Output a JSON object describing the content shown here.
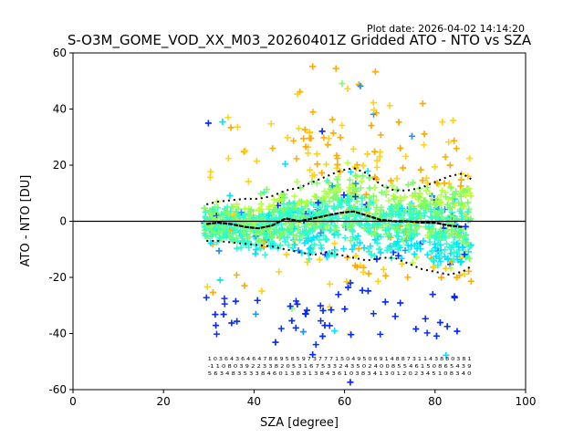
{
  "plot_date": "Plot date: 2026-04-02 14:14:20",
  "chart_data": {
    "type": "scatter",
    "title": "S-O3M_GOME_VOD_XX_M03_20260401Z Gridded ATO - NTO vs SZA",
    "xlabel": "SZA [degree]",
    "ylabel": "ATO - NTO [DU]",
    "xlim": [
      0,
      100
    ],
    "ylim": [
      -60,
      60
    ],
    "xticks": [
      0,
      20,
      40,
      60,
      80,
      100
    ],
    "yticks": [
      -60,
      -40,
      -20,
      0,
      20,
      40,
      60
    ],
    "grid": false,
    "zero_line": 0,
    "scatter": {
      "marker": "+",
      "sza_range": [
        29,
        88
      ],
      "colors": [
        "#0a2bff",
        "#1e90ff",
        "#00e5ff",
        "#2dfbd0",
        "#7cfc6a",
        "#b8ff3c",
        "#ffd21a",
        "#ffaa00"
      ]
    },
    "series": [
      {
        "name": "median",
        "style": "solid-steps",
        "color": "#000000",
        "x": [
          29.5,
          32,
          35,
          38,
          41,
          44,
          47,
          50,
          53,
          56,
          59,
          62,
          65,
          68,
          71,
          74,
          77,
          80,
          83,
          86
        ],
        "y": [
          -1,
          -0.5,
          -1,
          -2,
          -2.5,
          -1.5,
          1,
          0,
          1,
          2,
          3,
          3.5,
          2,
          0.5,
          0,
          0,
          -0.5,
          -0.5,
          -1.5,
          -2
        ]
      },
      {
        "name": "upper-percentile",
        "style": "dotted",
        "color": "#000000",
        "x": [
          29.5,
          32,
          35,
          38,
          41,
          44,
          47,
          50,
          53,
          56,
          59,
          62,
          65,
          68,
          71,
          74,
          77,
          80,
          83,
          86,
          88
        ],
        "y": [
          6,
          7,
          7.5,
          8,
          8,
          9,
          11,
          12,
          14,
          16,
          18,
          19,
          17,
          13,
          11,
          11,
          12,
          14,
          16,
          17,
          15
        ]
      },
      {
        "name": "lower-percentile",
        "style": "dotted",
        "color": "#000000",
        "x": [
          29.5,
          32,
          35,
          38,
          41,
          44,
          47,
          50,
          53,
          56,
          59,
          62,
          65,
          68,
          71,
          74,
          77,
          80,
          83,
          86,
          88
        ],
        "y": [
          -7,
          -7,
          -7.5,
          -8,
          -8.5,
          -9,
          -10,
          -11,
          -12,
          -11,
          -12,
          -13,
          -14,
          -13,
          -13,
          -15,
          -17,
          -18,
          -19,
          -18,
          -16
        ]
      }
    ],
    "annotation_rows": [
      "1 0 3 6 4 3 6 4 6 4 7 8 6 9 5 8 5 9 7 3 7 7 7 1 5 0 4 9 5 0 6 9 1 4 8 8 7 3 1 1 4 3 8 8 0 3 8 1",
      "-1 1 0 8 0 3 9 2 2 3 3 8 2 0 5 3 1 6 7 5 3 3 2 4 3 5 0 2 4 0 0 8 5 5 4 6 1 5 0 8 6 5 4 3 9",
      "5 6 3 4 8 3 5 3 3 8 4 6 0 1 3 8 3 1 3 8 4 3 6 1 0 3 8 3 4 1 3 0 1 2 0 2 3 4 5 1 0 8 3 4 0"
    ]
  }
}
